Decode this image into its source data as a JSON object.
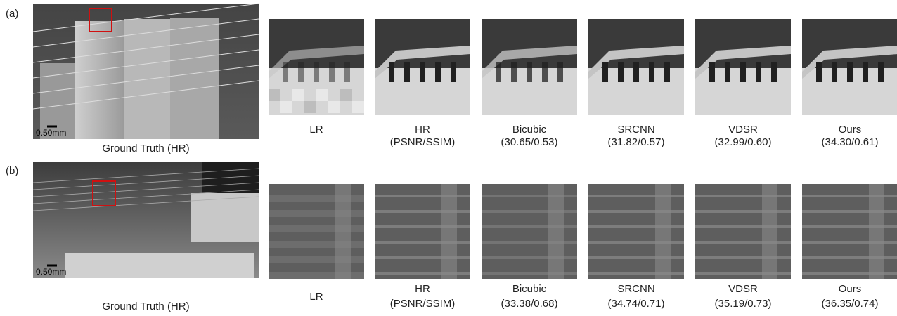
{
  "figure": {
    "rows": [
      {
        "label": "(a)",
        "scale_bar": "0.50mm",
        "caption": "Ground Truth (HR)",
        "panels": [
          {
            "lines": [
              "LR"
            ]
          },
          {
            "lines": [
              "HR",
              "(PSNR/SSIM)"
            ]
          },
          {
            "lines": [
              "Bicubic",
              "(30.65/0.53)"
            ]
          },
          {
            "lines": [
              "SRCNN",
              "(31.82/0.57)"
            ]
          },
          {
            "lines": [
              "VDSR",
              "(32.99/0.60)"
            ]
          },
          {
            "lines": [
              "Ours",
              "(34.30/0.61)"
            ]
          }
        ]
      },
      {
        "label": "(b)",
        "scale_bar": "0.50mm",
        "caption": "Ground Truth (HR)",
        "panels": [
          {
            "lines": [
              "LR"
            ]
          },
          {
            "lines": [
              "HR",
              "(PSNR/SSIM)"
            ]
          },
          {
            "lines": [
              "Bicubic",
              "(33.38/0.68)"
            ]
          },
          {
            "lines": [
              "SRCNN",
              "(34.74/0.71)"
            ]
          },
          {
            "lines": [
              "VDSR",
              "(35.19/0.73)"
            ]
          },
          {
            "lines": [
              "Ours",
              "(36.35/0.74)"
            ]
          }
        ]
      }
    ]
  }
}
